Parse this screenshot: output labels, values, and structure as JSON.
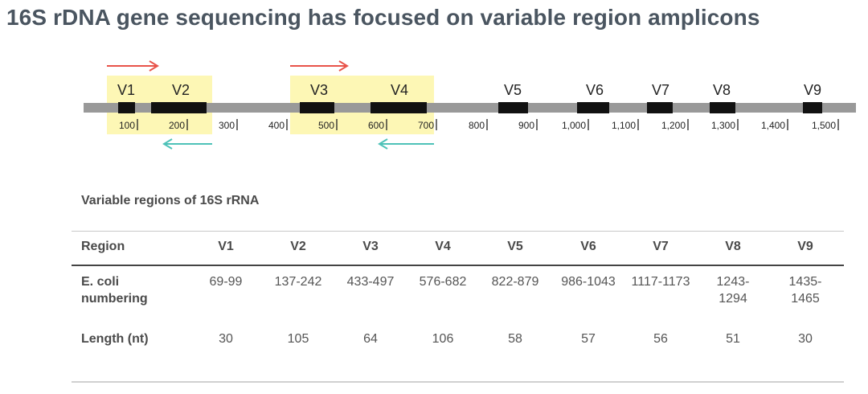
{
  "title": "16S rDNA gene sequencing has focused on variable region amplicons",
  "diagram": {
    "region_labels": [
      "V1",
      "V2",
      "V3",
      "V4",
      "V5",
      "V6",
      "V7",
      "V8",
      "V9"
    ],
    "scale_labels": [
      "100",
      "200",
      "300",
      "400",
      "500",
      "600",
      "700",
      "800",
      "900",
      "1,000",
      "1,100",
      "1,200",
      "1,300",
      "1,400",
      "1,500"
    ],
    "colors": {
      "backbone": "#999999",
      "region_block": "#111111",
      "amplicon_highlight": "#fdf7b5",
      "forward_primer": "#e8534a",
      "reverse_primer": "#4ec2b8"
    }
  },
  "table": {
    "caption": "Variable regions of 16S rRNA",
    "headers": [
      "Region",
      "V1",
      "V2",
      "V3",
      "V4",
      "V5",
      "V6",
      "V7",
      "V8",
      "V9"
    ],
    "rows": [
      {
        "label": "E. coli numbering",
        "cells": [
          "69-99",
          "137-242",
          "433-497",
          "576-682",
          "822-879",
          "986-1043",
          "1117-1173",
          "1243-1294",
          "1435-1465"
        ]
      },
      {
        "label": "Length (nt)",
        "cells": [
          "30",
          "105",
          "64",
          "106",
          "58",
          "57",
          "56",
          "51",
          "30"
        ]
      }
    ]
  }
}
